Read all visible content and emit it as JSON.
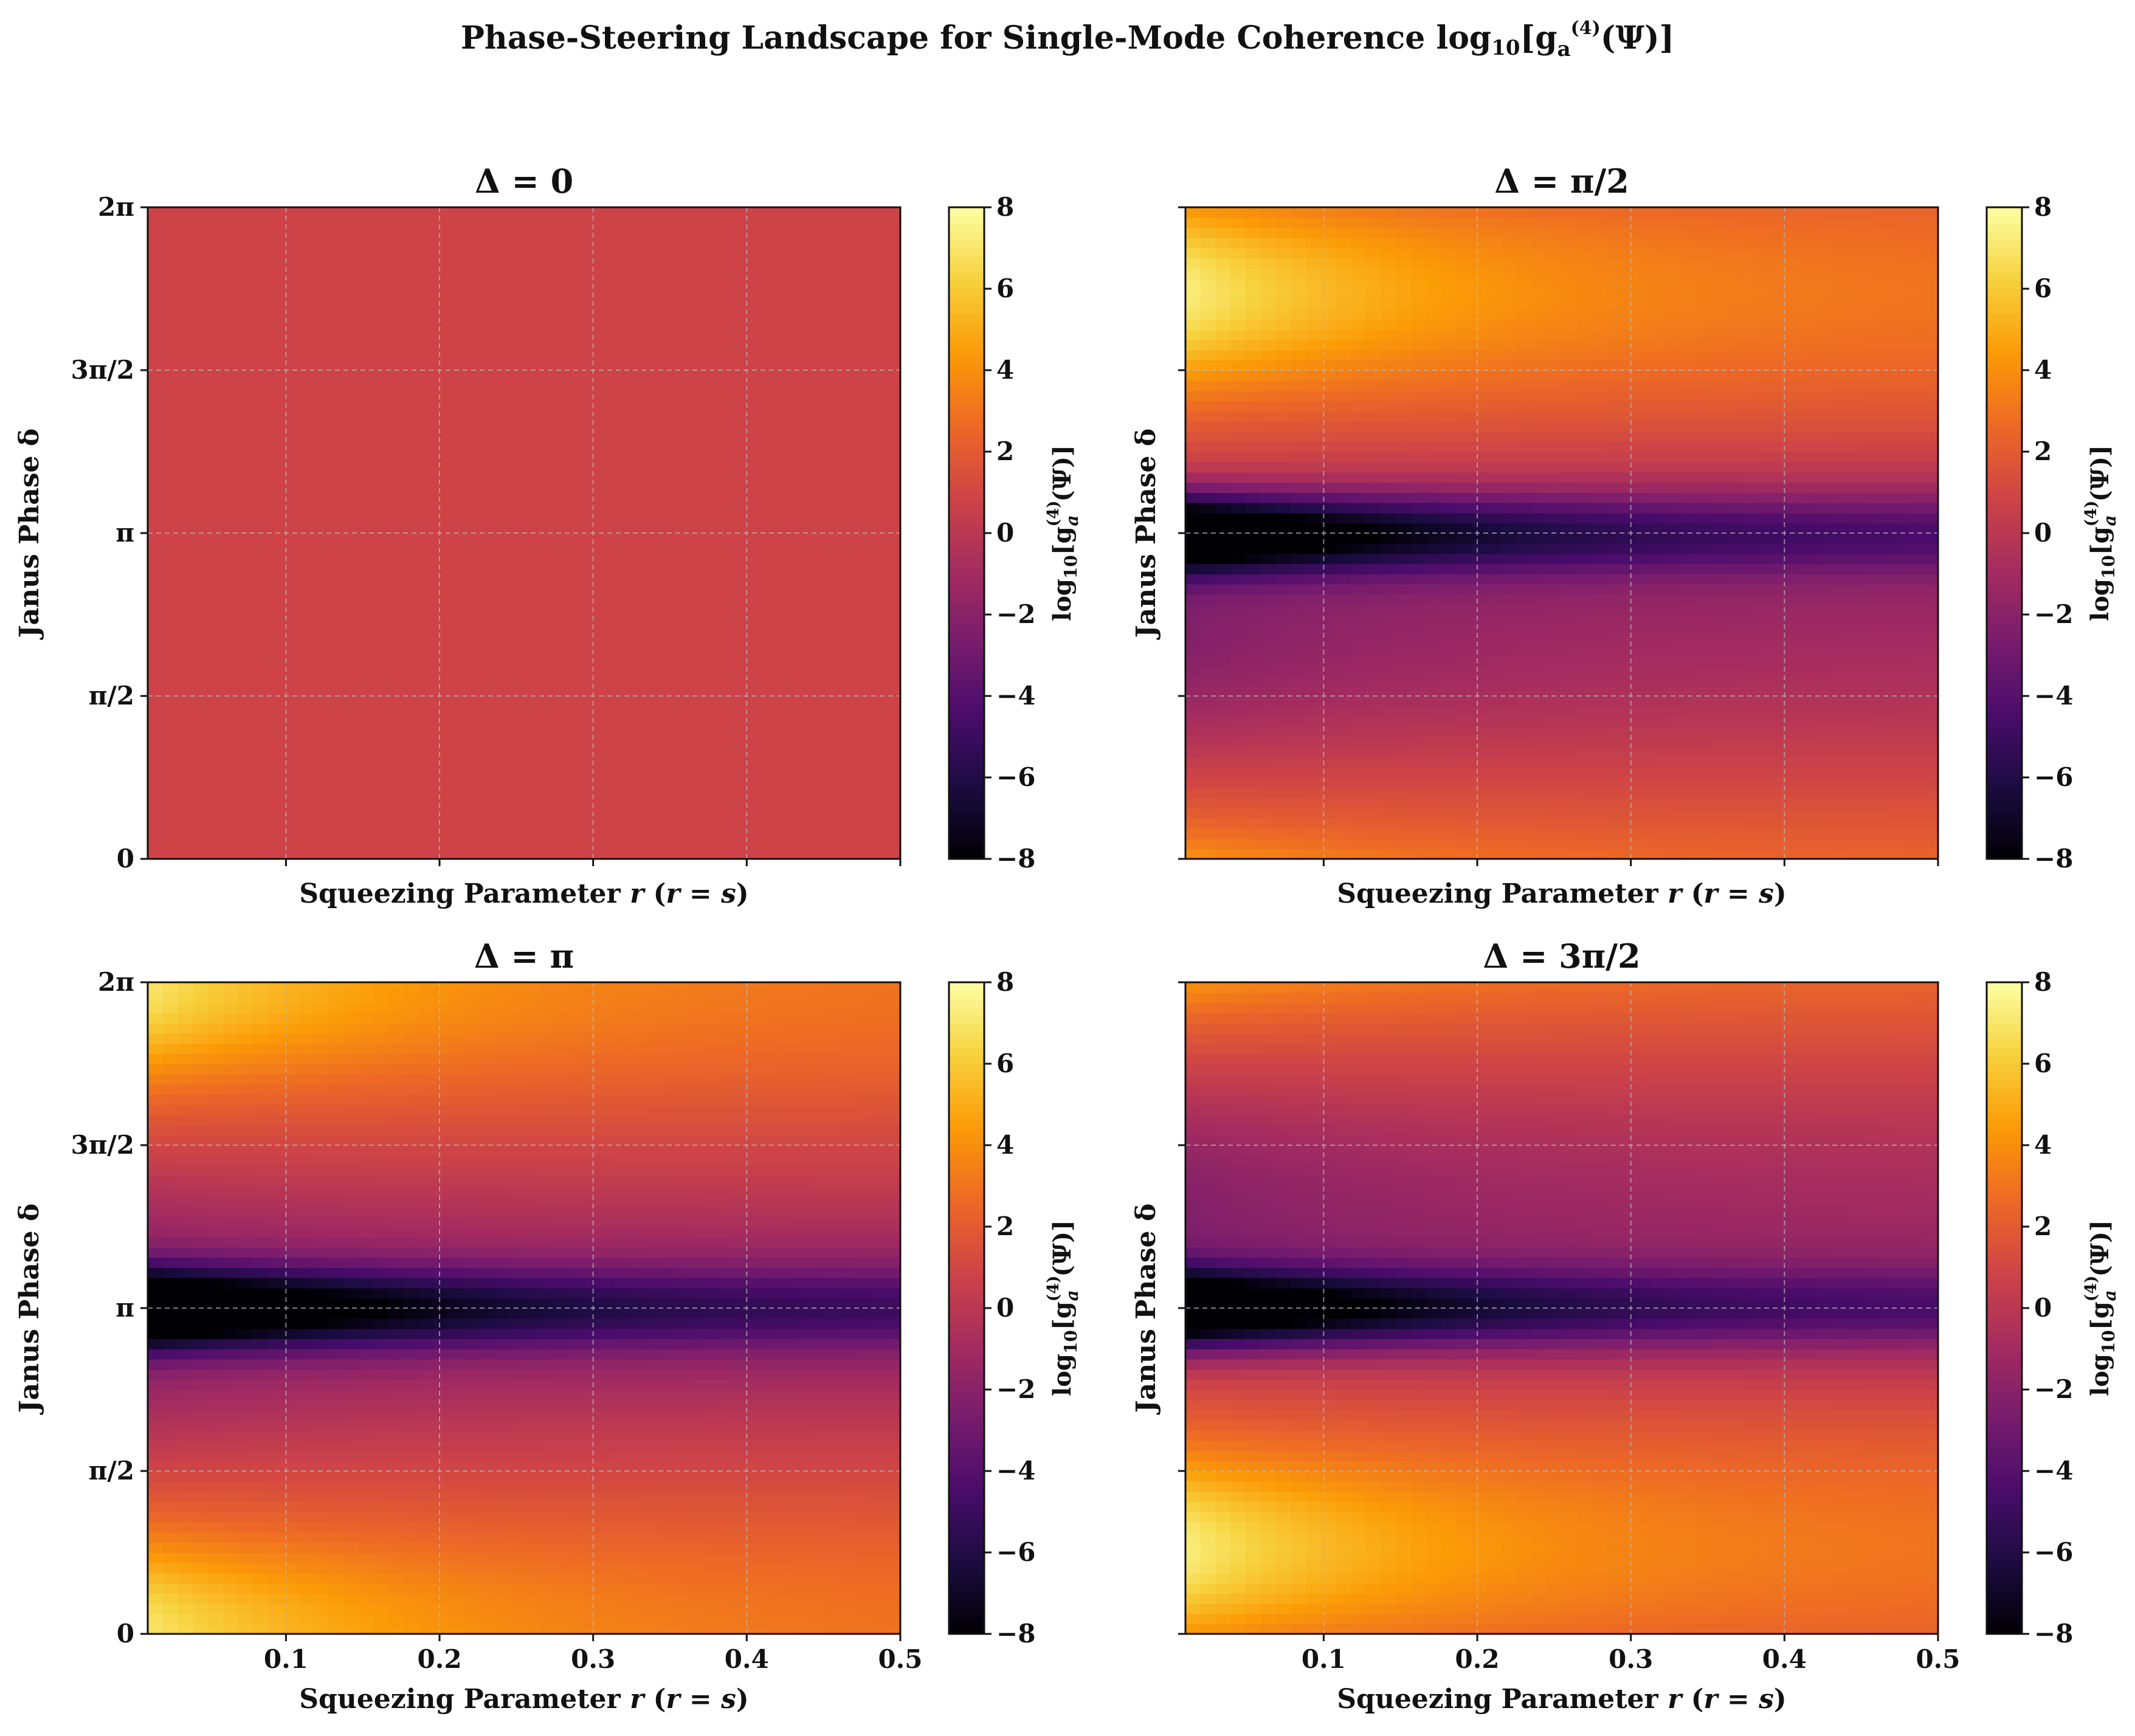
{
  "chart_data": {
    "type": "heatmap",
    "title": "Phase-Steering Landscape for Single-Mode Coherence log10[g_a^(4)(Ψ)]",
    "title_text": {
      "main": "Phase-Steering Landscape for Single-Mode Coherence log",
      "sub": "10",
      "tail": "[g",
      "var_sub": "a",
      "var_sup": "(4)",
      "end": "(Ψ)]"
    },
    "colormap": "inferno",
    "color_range": [
      -8,
      8
    ],
    "colormap_stops": [
      "#000004",
      "#1b0c41",
      "#4a0c6b",
      "#781c6d",
      "#a52c60",
      "#cf4446",
      "#ed6925",
      "#fb9b06",
      "#f7d13d",
      "#fcffa4"
    ],
    "xlabel": "Squeezing Parameter r (r = s)",
    "xlabel_parts": {
      "base": "Squeezing Parameter ",
      "var": "r",
      "paren": " (",
      "eq_left": "r",
      "eq_mid": " = ",
      "eq_right": "s",
      "close": ")"
    },
    "ylabel": "Janus Phase δ",
    "cbar_label": "log10[g_a^(4)(Ψ)]",
    "cbar_label_parts": {
      "log": "log",
      "log_sub": "10",
      "open": "[g",
      "sup": "(4)",
      "sub": "a",
      "close": "(Ψ)]"
    },
    "xlim": [
      0.01,
      0.5
    ],
    "x_ticks": [
      0.1,
      0.2,
      0.3,
      0.4,
      0.5
    ],
    "x_tick_labels": [
      "0.1",
      "0.2",
      "0.3",
      "0.4",
      "0.5"
    ],
    "ylim": [
      0,
      6.2832
    ],
    "y_ticks": [
      0,
      1.5708,
      3.1416,
      4.7124,
      6.2832
    ],
    "y_tick_labels": [
      "0",
      "π/2",
      "π",
      "3π/2",
      "2π"
    ],
    "cbar_ticks": [
      -8,
      -6,
      -4,
      -2,
      0,
      2,
      4,
      6,
      8
    ],
    "cbar_tick_labels": [
      "−8",
      "−6",
      "−4",
      "−2",
      "0",
      "2",
      "4",
      "6",
      "8"
    ],
    "grid": true,
    "panels": [
      {
        "title": "Δ = 0",
        "Delta": 0,
        "uniform_value": 0.8
      },
      {
        "title": "Δ = π/2",
        "Delta": 1.5708
      },
      {
        "title": "Δ = π",
        "Delta": 3.1416
      },
      {
        "title": "Δ = 3π/2",
        "Delta": 4.7124
      }
    ]
  }
}
